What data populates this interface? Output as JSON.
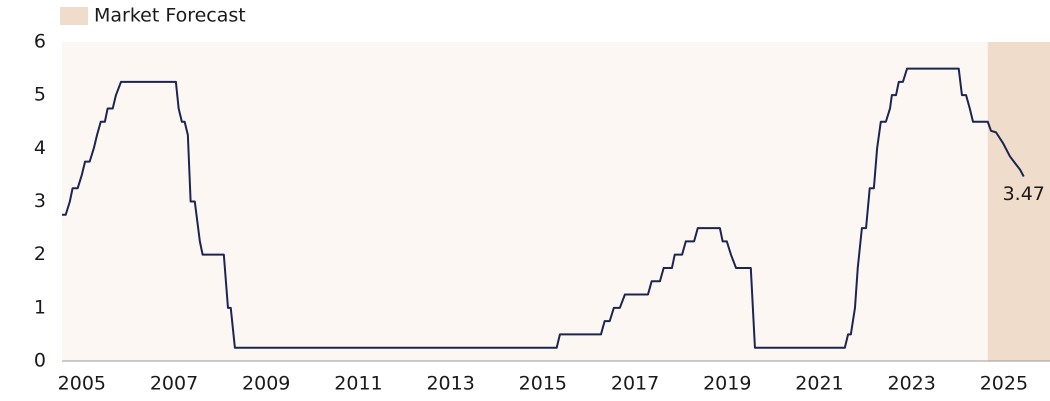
{
  "chart_data": {
    "type": "line",
    "legend": "Market Forecast",
    "forecast_start": 2024.65,
    "forecast_color": "#efdcca",
    "background_color": "#fdf7f4",
    "annotation": "3.47",
    "xlim": [
      2004.57,
      2026.0
    ],
    "xticks": [
      2005,
      2007,
      2009,
      2011,
      2013,
      2015,
      2017,
      2019,
      2021,
      2023,
      2025
    ],
    "ylim": [
      0,
      6
    ],
    "yticks": [
      0,
      1,
      2,
      3,
      4,
      5,
      6
    ],
    "series": [
      {
        "color": "#1b2550",
        "x": [
          2004.57,
          2004.65,
          2004.74,
          2004.8,
          2004.91,
          2005.0,
          2005.07,
          2005.17,
          2005.26,
          2005.33,
          2005.41,
          2005.5,
          2005.56,
          2005.67,
          2005.74,
          2005.85,
          2007.04,
          2007.1,
          2007.17,
          2007.23,
          2007.3,
          2007.36,
          2007.45,
          2007.56,
          2007.62,
          2008.08,
          2008.17,
          2008.23,
          2008.32,
          2015.3,
          2015.37,
          2016.26,
          2016.34,
          2016.45,
          2016.54,
          2016.67,
          2016.78,
          2017.28,
          2017.36,
          2017.54,
          2017.62,
          2017.8,
          2017.86,
          2018.02,
          2018.1,
          2018.28,
          2018.36,
          2018.84,
          2018.9,
          2018.99,
          2019.08,
          2019.19,
          2019.51,
          2019.6,
          2021.55,
          2021.62,
          2021.68,
          2021.77,
          2021.83,
          2021.92,
          2022.01,
          2022.09,
          2022.18,
          2022.25,
          2022.33,
          2022.44,
          2022.53,
          2022.57,
          2022.66,
          2022.72,
          2022.81,
          2022.9,
          2024.02,
          2024.09,
          2024.18,
          2024.26,
          2024.33,
          2024.65,
          2024.72,
          2024.83,
          2024.98,
          2025.13,
          2025.26,
          2025.35,
          2025.43
        ],
        "values": [
          2.75,
          2.75,
          3.0,
          3.25,
          3.25,
          3.5,
          3.75,
          3.75,
          4.0,
          4.25,
          4.5,
          4.5,
          4.75,
          4.75,
          5.0,
          5.25,
          5.25,
          4.75,
          4.5,
          4.5,
          4.25,
          3.0,
          3.0,
          2.25,
          2.0,
          2.0,
          1.0,
          1.0,
          0.25,
          0.25,
          0.5,
          0.5,
          0.75,
          0.75,
          1.0,
          1.0,
          1.25,
          1.25,
          1.5,
          1.5,
          1.75,
          1.75,
          2.0,
          2.0,
          2.25,
          2.25,
          2.5,
          2.5,
          2.25,
          2.25,
          2.0,
          1.75,
          1.75,
          0.25,
          0.25,
          0.5,
          0.5,
          1.0,
          1.75,
          2.5,
          2.5,
          3.25,
          3.25,
          4.0,
          4.5,
          4.5,
          4.75,
          5.0,
          5.0,
          5.25,
          5.25,
          5.5,
          5.5,
          5.0,
          5.0,
          4.75,
          4.5,
          4.5,
          4.33,
          4.3,
          4.1,
          3.85,
          3.7,
          3.6,
          3.47
        ]
      }
    ]
  }
}
